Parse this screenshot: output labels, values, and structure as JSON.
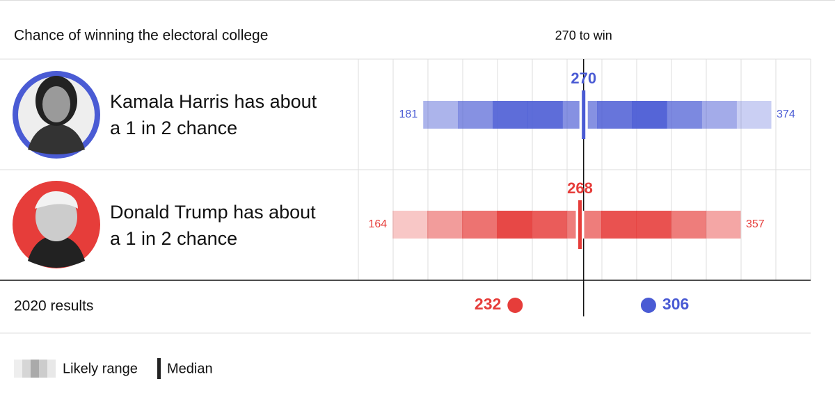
{
  "chart_data": {
    "type": "range",
    "title": "Chance of winning the electoral college",
    "threshold": {
      "value": 270,
      "label": "270 to win"
    },
    "xlim": [
      145,
      396
    ],
    "series": [
      {
        "name": "Kamala Harris has about a 1 in 2 chance",
        "color": "#4a5bd4",
        "low": 181,
        "median": 270,
        "high": 374
      },
      {
        "name": "Donald Trump has about a 1 in 2 chance",
        "color": "#e63d3a",
        "low": 164,
        "median": 268,
        "high": 357
      }
    ],
    "results": {
      "label": "2020 results",
      "values": [
        {
          "value": 232,
          "color": "#e63d3a"
        },
        {
          "value": 306,
          "color": "#4a5bd4"
        }
      ]
    },
    "legend": {
      "range": "Likely range",
      "median": "Median"
    }
  }
}
